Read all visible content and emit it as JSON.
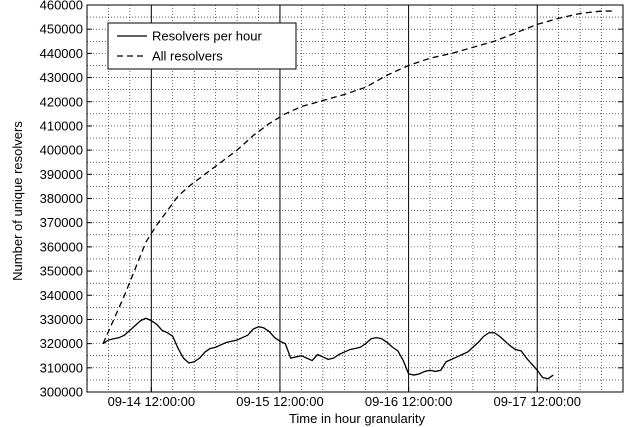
{
  "chart_data": {
    "type": "line",
    "xlabel": "Time in hour granularity",
    "ylabel": "Number of unique resolvers",
    "x_unit": "hours since 09-14 00:00:00",
    "xlim": [
      0,
      100
    ],
    "ylim": [
      300000,
      460000
    ],
    "y_ticks": [
      300000,
      310000,
      320000,
      330000,
      340000,
      350000,
      360000,
      370000,
      380000,
      390000,
      400000,
      410000,
      420000,
      430000,
      440000,
      450000,
      460000
    ],
    "x_ticks": [
      {
        "x": 12,
        "label": "09-14 12:00:00"
      },
      {
        "x": 36,
        "label": "09-15 12:00:00"
      },
      {
        "x": 60,
        "label": "09-16 12:00:00"
      },
      {
        "x": 84,
        "label": "09-17 12:00:00"
      }
    ],
    "grid": true,
    "legend_position": "top-left",
    "series": [
      {
        "name": "Resolvers per hour",
        "style": "solid",
        "points": [
          [
            3,
            320000
          ],
          [
            4,
            321500
          ],
          [
            5,
            322000
          ],
          [
            6,
            322500
          ],
          [
            7,
            323500
          ],
          [
            8,
            325500
          ],
          [
            9,
            327500
          ],
          [
            10,
            329500
          ],
          [
            11,
            330500
          ],
          [
            12,
            329500
          ],
          [
            13,
            328000
          ],
          [
            14,
            325500
          ],
          [
            15,
            324500
          ],
          [
            16,
            323000
          ],
          [
            17,
            318000
          ],
          [
            18,
            314000
          ],
          [
            19,
            312000
          ],
          [
            20,
            312500
          ],
          [
            21,
            314000
          ],
          [
            22,
            316500
          ],
          [
            23,
            318000
          ],
          [
            24,
            318500
          ],
          [
            25,
            319500
          ],
          [
            26,
            320500
          ],
          [
            27,
            321000
          ],
          [
            28,
            321500
          ],
          [
            29,
            322500
          ],
          [
            30,
            323500
          ],
          [
            31,
            326000
          ],
          [
            32,
            327000
          ],
          [
            33,
            326500
          ],
          [
            34,
            325000
          ],
          [
            35,
            322500
          ],
          [
            36,
            321000
          ],
          [
            37,
            320000
          ],
          [
            38,
            314000
          ],
          [
            39,
            314500
          ],
          [
            40,
            315000
          ],
          [
            41,
            314000
          ],
          [
            42,
            313000
          ],
          [
            43,
            315500
          ],
          [
            44,
            314500
          ],
          [
            45,
            313500
          ],
          [
            46,
            314000
          ],
          [
            47,
            315500
          ],
          [
            48,
            316500
          ],
          [
            49,
            317500
          ],
          [
            50,
            318000
          ],
          [
            51,
            318500
          ],
          [
            52,
            320000
          ],
          [
            53,
            322000
          ],
          [
            54,
            322500
          ],
          [
            55,
            322000
          ],
          [
            56,
            320500
          ],
          [
            57,
            318500
          ],
          [
            58,
            317000
          ],
          [
            59,
            313000
          ],
          [
            60,
            307500
          ],
          [
            61,
            307000
          ],
          [
            62,
            307500
          ],
          [
            63,
            308500
          ],
          [
            64,
            309000
          ],
          [
            65,
            308500
          ],
          [
            66,
            309000
          ],
          [
            67,
            312500
          ],
          [
            68,
            313500
          ],
          [
            69,
            314500
          ],
          [
            70,
            315500
          ],
          [
            71,
            316500
          ],
          [
            72,
            318500
          ],
          [
            73,
            320500
          ],
          [
            74,
            323000
          ],
          [
            75,
            324500
          ],
          [
            76,
            324500
          ],
          [
            77,
            323000
          ],
          [
            78,
            321000
          ],
          [
            79,
            319000
          ],
          [
            80,
            317500
          ],
          [
            81,
            317000
          ],
          [
            82,
            314000
          ],
          [
            83,
            311500
          ],
          [
            84,
            309000
          ],
          [
            85,
            306000
          ],
          [
            86,
            305500
          ],
          [
            87,
            307000
          ]
        ]
      },
      {
        "name": "All resolvers",
        "style": "dashed",
        "points": [
          [
            3,
            320000
          ],
          [
            5,
            330000
          ],
          [
            7,
            340000
          ],
          [
            9,
            351000
          ],
          [
            11,
            362000
          ],
          [
            13,
            369000
          ],
          [
            15,
            375000
          ],
          [
            17,
            381000
          ],
          [
            19,
            385000
          ],
          [
            22,
            390000
          ],
          [
            25,
            395000
          ],
          [
            28,
            400000
          ],
          [
            31,
            406000
          ],
          [
            34,
            411000
          ],
          [
            37,
            415000
          ],
          [
            40,
            418000
          ],
          [
            44,
            420500
          ],
          [
            48,
            423000
          ],
          [
            52,
            426000
          ],
          [
            56,
            431000
          ],
          [
            60,
            435000
          ],
          [
            64,
            438000
          ],
          [
            68,
            440000
          ],
          [
            72,
            442500
          ],
          [
            76,
            445000
          ],
          [
            80,
            448500
          ],
          [
            84,
            452000
          ],
          [
            88,
            454500
          ],
          [
            92,
            456500
          ],
          [
            96,
            457500
          ],
          [
            98,
            457500
          ]
        ]
      }
    ]
  }
}
